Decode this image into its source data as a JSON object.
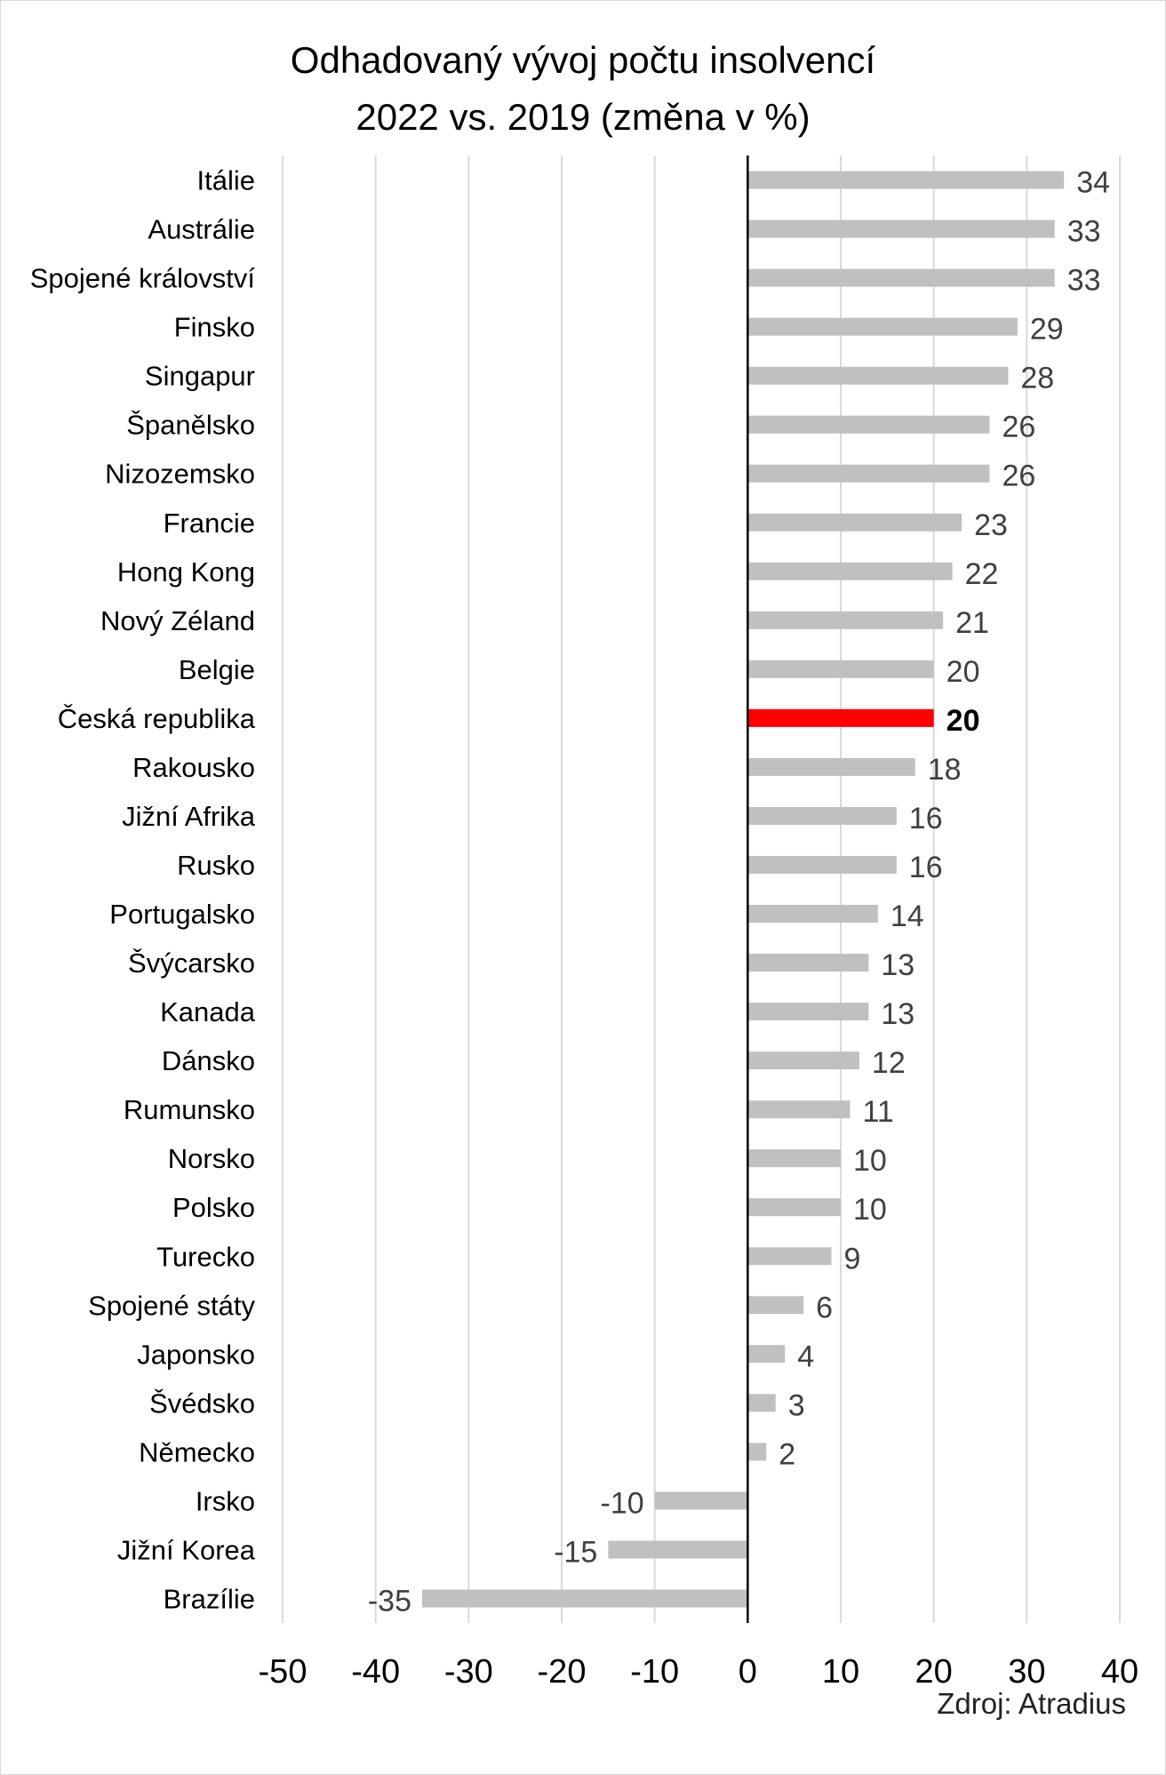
{
  "chart_data": {
    "type": "bar",
    "orientation": "horizontal",
    "title_lines": [
      "Odhadovaný vývoj počtu insolvencí",
      "2022 vs. 2019 (změna v %)"
    ],
    "categories": [
      "Itálie",
      "Austrálie",
      "Spojené království",
      "Finsko",
      "Singapur",
      "Španělsko",
      "Nizozemsko",
      "Francie",
      "Hong Kong",
      "Nový Zéland",
      "Belgie",
      "Česká republika",
      "Rakousko",
      "Jižní Afrika",
      "Rusko",
      "Portugalsko",
      "Švýcarsko",
      "Kanada",
      "Dánsko",
      "Rumunsko",
      "Norsko",
      "Polsko",
      "Turecko",
      "Spojené státy",
      "Japonsko",
      "Švédsko",
      "Německo",
      "Irsko",
      "Jižní Korea",
      "Brazílie"
    ],
    "values": [
      34,
      33,
      33,
      29,
      28,
      26,
      26,
      23,
      22,
      21,
      20,
      20,
      18,
      16,
      16,
      14,
      13,
      13,
      12,
      11,
      10,
      10,
      9,
      6,
      4,
      3,
      2,
      -10,
      -15,
      -35
    ],
    "highlight": {
      "category": "Česká republika",
      "color": "#ff0000"
    },
    "bar_color": "#c0c0c0",
    "xlim": [
      -50,
      40
    ],
    "xticks": [
      -50,
      -40,
      -30,
      -20,
      -10,
      0,
      10,
      20,
      30,
      40
    ],
    "grid": true,
    "source": "Zdroj: Atradius"
  }
}
